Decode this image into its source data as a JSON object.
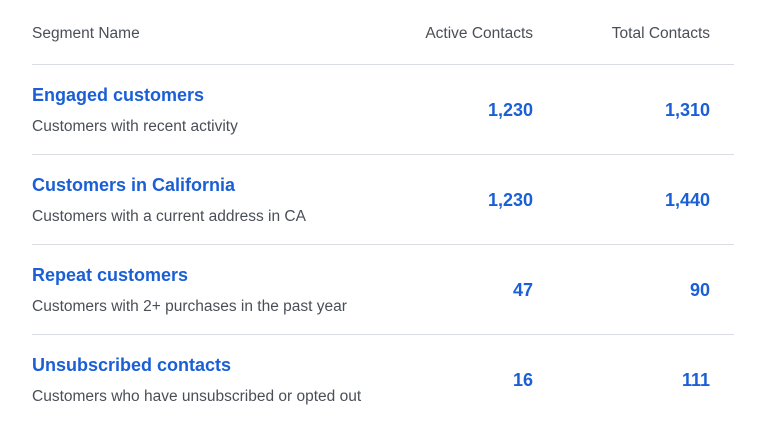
{
  "table": {
    "headers": {
      "name": "Segment Name",
      "active": "Active Contacts",
      "total": "Total Contacts"
    },
    "rows": [
      {
        "name": "Engaged customers",
        "description": "Customers with recent activity",
        "active": "1,230",
        "total": "1,310"
      },
      {
        "name": "Customers in California",
        "description": "Customers with a current address in CA",
        "active": "1,230",
        "total": "1,440"
      },
      {
        "name": "Repeat customers",
        "description": "Customers with 2+ purchases in the past year",
        "active": "47",
        "total": "90"
      },
      {
        "name": "Unsubscribed contacts",
        "description": "Customers who have unsubscribed or opted out",
        "active": "16",
        "total": "111"
      }
    ]
  },
  "colors": {
    "link": "#1a5fd6",
    "muted_text": "#4a4f57",
    "divider": "#d9dde3"
  }
}
